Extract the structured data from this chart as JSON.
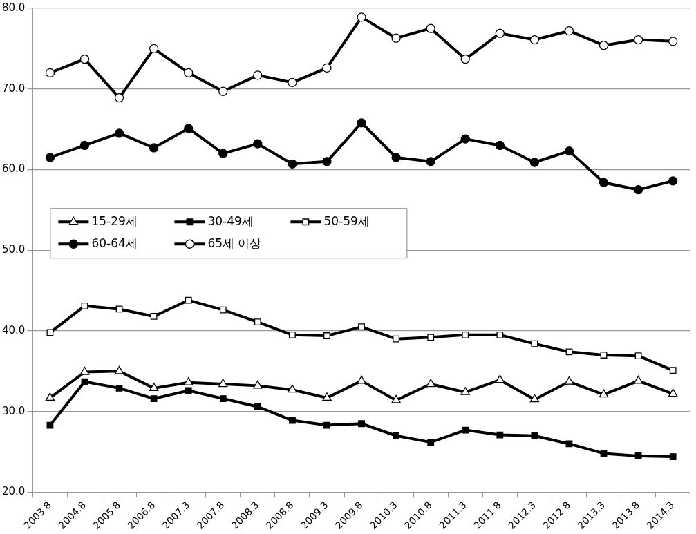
{
  "chart_data": {
    "type": "line",
    "categories": [
      "2003.8",
      "2004.8",
      "2005.8",
      "2006.8",
      "2007.3",
      "2007.8",
      "2008.3",
      "2008.8",
      "2009.3",
      "2009.8",
      "2010.3",
      "2010.8",
      "2011.3",
      "2011.8",
      "2012.3",
      "2012.8",
      "2013.3",
      "2013.8",
      "2014.3"
    ],
    "series": [
      {
        "name": "15-29세",
        "color": "#000000",
        "marker": "triangle",
        "values": [
          31.7,
          34.9,
          35.0,
          32.9,
          33.6,
          33.4,
          33.2,
          32.7,
          31.7,
          33.8,
          31.4,
          33.4,
          32.4,
          33.9,
          31.5,
          33.7,
          32.1,
          33.8,
          32.2
        ]
      },
      {
        "name": "30-49세",
        "color": "#000000",
        "marker": "square",
        "values": [
          28.3,
          33.7,
          32.9,
          31.6,
          32.6,
          31.6,
          30.6,
          28.9,
          28.3,
          28.5,
          27.0,
          26.2,
          27.7,
          27.1,
          27.0,
          26.0,
          24.8,
          24.5,
          24.4
        ]
      },
      {
        "name": "50-59세",
        "color": "#000000",
        "marker": "square",
        "values": [
          39.8,
          43.1,
          42.7,
          41.8,
          43.8,
          42.6,
          41.1,
          39.5,
          39.4,
          40.5,
          39.0,
          39.2,
          39.5,
          39.5,
          38.4,
          37.4,
          37.0,
          36.9,
          35.1
        ]
      },
      {
        "name": "60-64세",
        "color": "#000000",
        "marker": "circle",
        "values": [
          61.5,
          63.0,
          64.5,
          62.7,
          65.1,
          62.0,
          63.2,
          60.7,
          61.0,
          65.8,
          61.5,
          61.0,
          63.8,
          63.0,
          60.9,
          62.3,
          58.4,
          57.5,
          58.6
        ]
      },
      {
        "name": "65세 이상",
        "color": "#000000",
        "marker": "circle",
        "values": [
          72.0,
          73.7,
          68.9,
          75.0,
          72.0,
          69.7,
          71.7,
          70.8,
          72.6,
          78.9,
          76.3,
          77.5,
          73.7,
          76.9,
          76.1,
          77.2,
          75.4,
          76.1,
          75.9
        ]
      }
    ],
    "ylim": [
      20,
      80
    ],
    "yticks": [
      {
        "value": 20,
        "label": "20.0"
      },
      {
        "value": 30,
        "label": "30.0"
      },
      {
        "value": 40,
        "label": "40.0"
      },
      {
        "value": 50,
        "label": "50.0"
      },
      {
        "value": 60,
        "label": "60.0"
      },
      {
        "value": 70,
        "label": "70.0"
      },
      {
        "value": 80,
        "label": "80.0"
      }
    ],
    "grid": "y",
    "legend": "center left",
    "line_style": "solid"
  }
}
